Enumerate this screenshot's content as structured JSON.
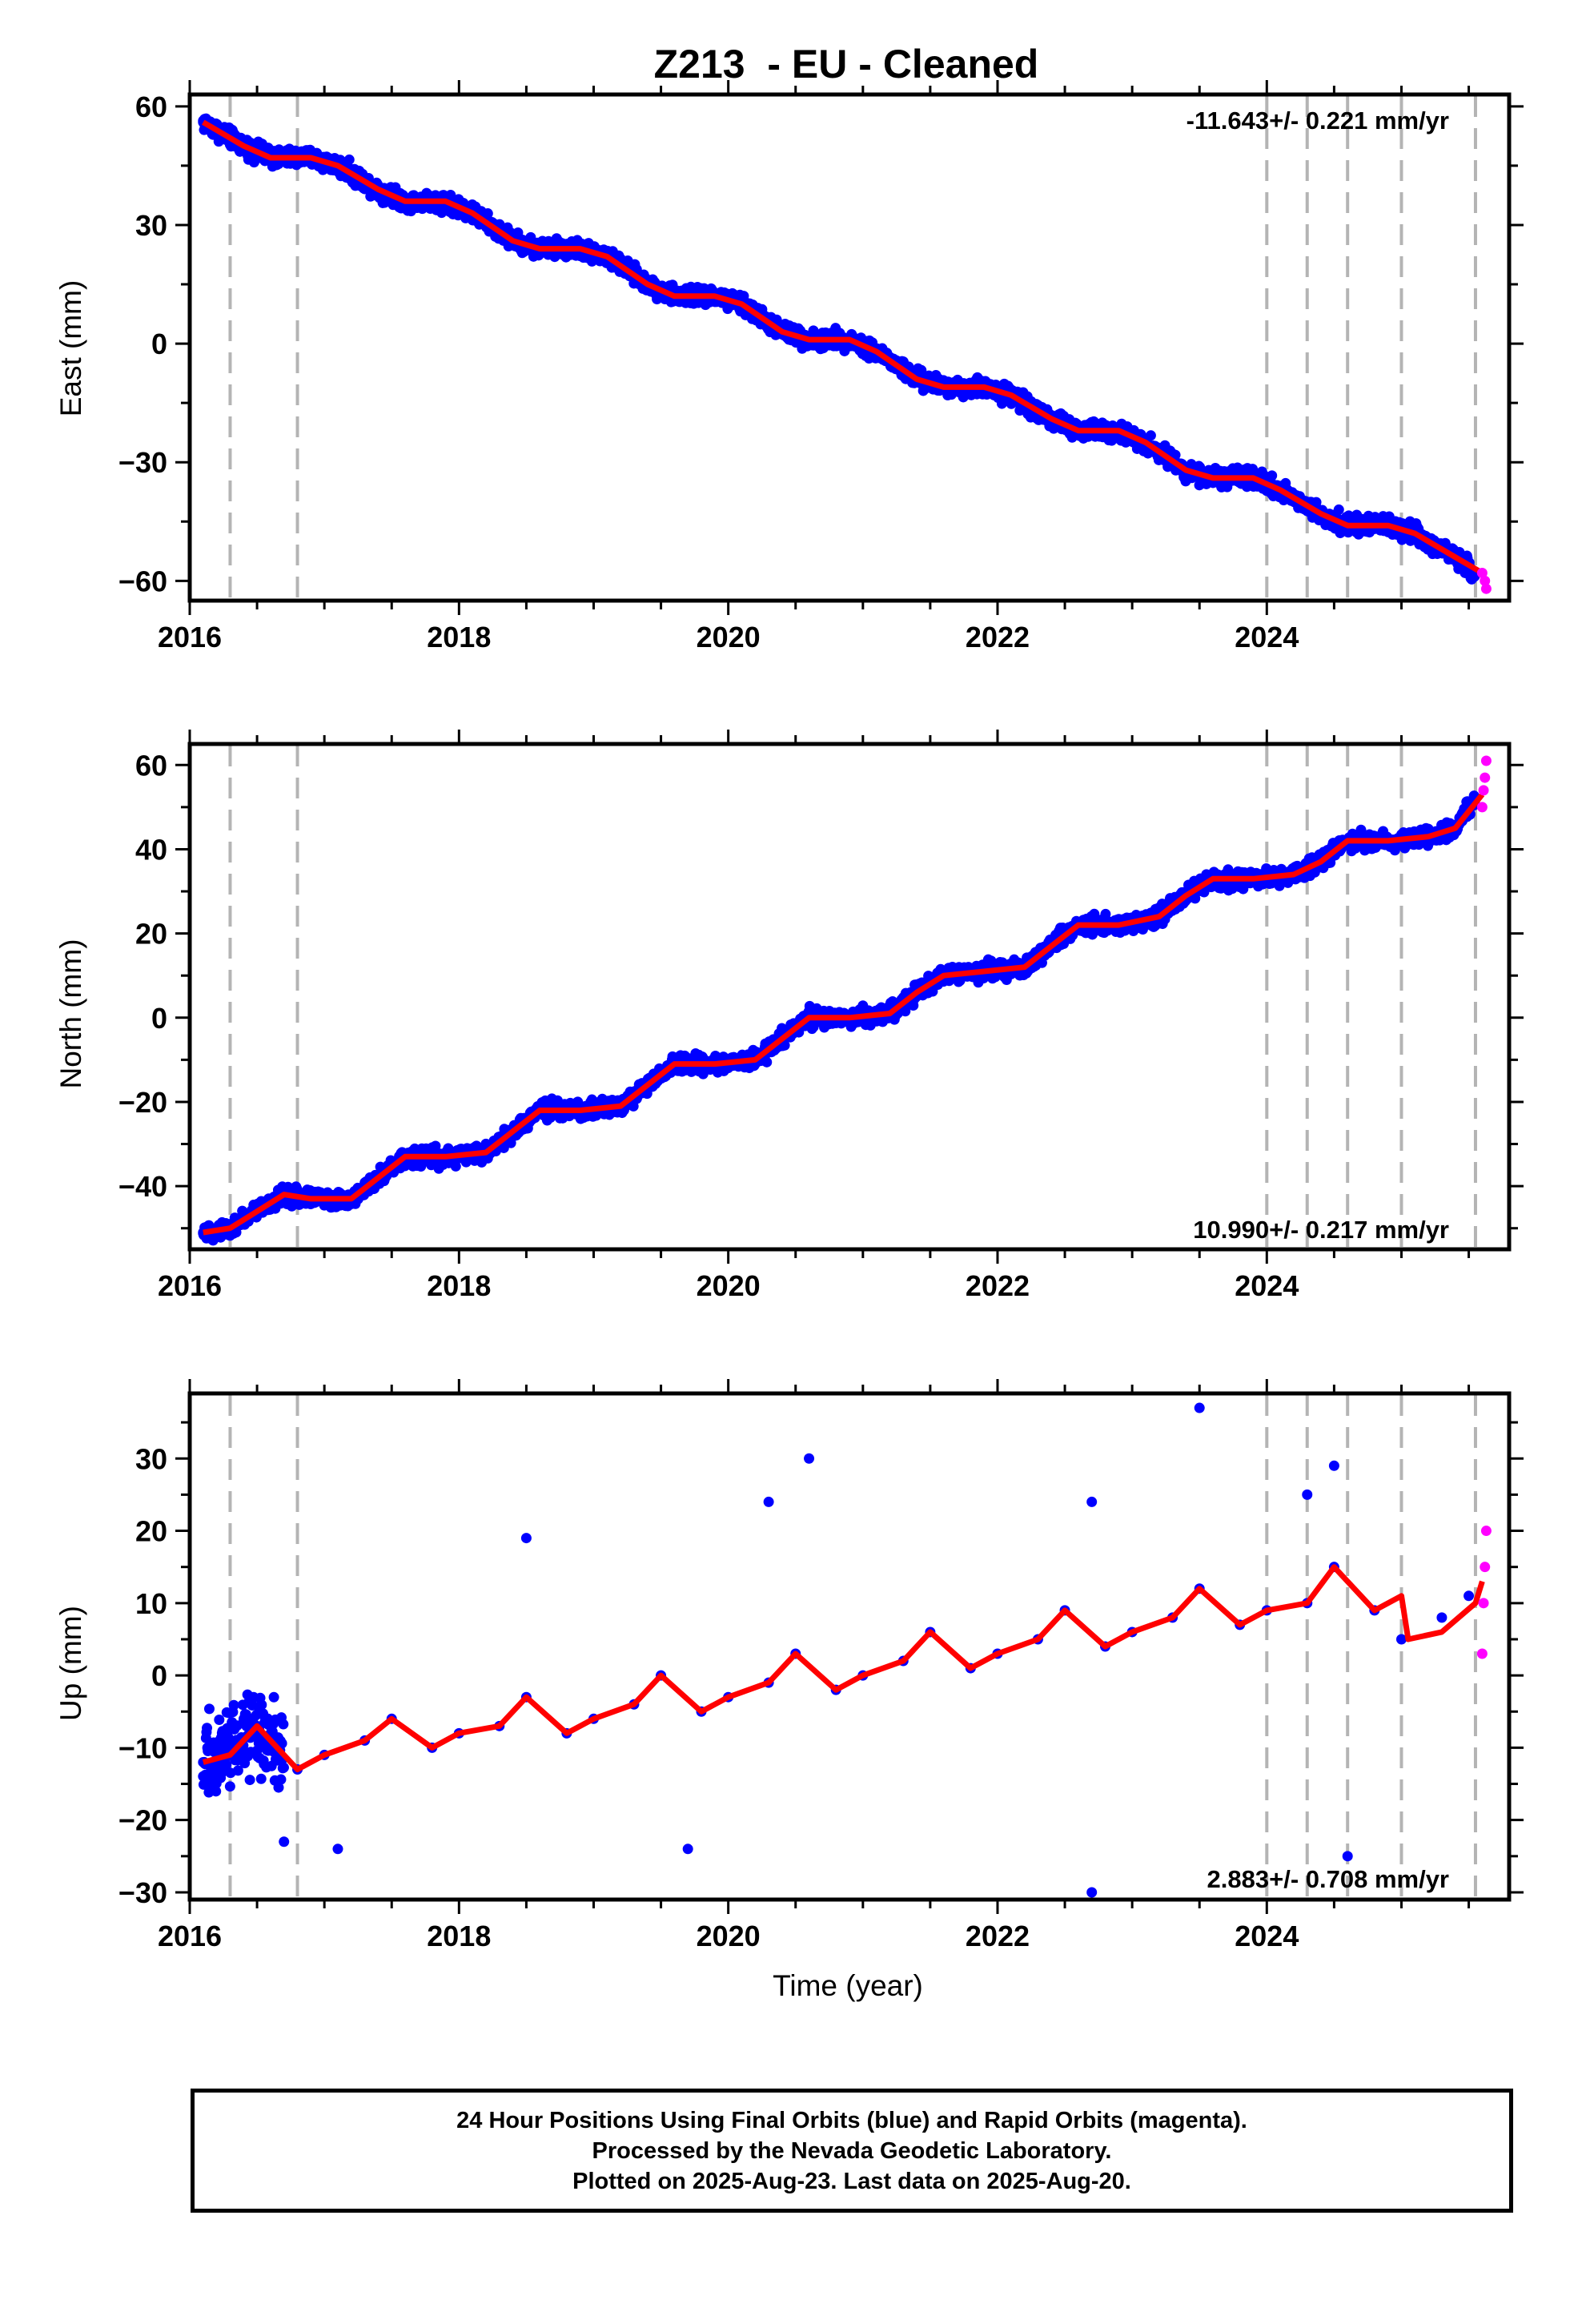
{
  "title": "Z213  - EU - Cleaned",
  "footer": {
    "line1": "24 Hour Positions Using Final Orbits (blue) and Rapid Orbits (magenta).",
    "line2": "Processed by the Nevada Geodetic Laboratory.",
    "line3": "Plotted on 2025-Aug-23. Last data on 2025-Aug-20."
  },
  "colors": {
    "final_orbits": "#0000ff",
    "rapid_orbits": "#ff00ff",
    "model": "#ff0000",
    "event_lines": "#b4b4b4"
  },
  "chart_data": [
    {
      "type": "scatter",
      "ylabel": "East (mm)",
      "xlabel": "",
      "rate": "-11.643+/- 0.221 mm/yr",
      "xlim": [
        2016.0,
        2025.8
      ],
      "ylim": [
        -65,
        63
      ],
      "xticks": [
        2016,
        2018,
        2020,
        2022,
        2024
      ],
      "yticks": [
        -60,
        -30,
        0,
        30,
        60
      ],
      "event_lines": [
        2016.3,
        2016.8,
        2024.0,
        2024.3,
        2024.6,
        2025.0,
        2025.55
      ],
      "series": [
        {
          "name": "Final Orbits",
          "color": "#0000ff",
          "x": [
            2016.1,
            2016.4,
            2016.6,
            2016.9,
            2017.1,
            2017.4,
            2017.6,
            2017.9,
            2018.1,
            2018.4,
            2018.6,
            2018.9,
            2019.1,
            2019.4,
            2019.6,
            2019.9,
            2020.1,
            2020.4,
            2020.6,
            2020.9,
            2021.1,
            2021.4,
            2021.6,
            2021.9,
            2022.1,
            2022.4,
            2022.6,
            2022.9,
            2023.1,
            2023.4,
            2023.6,
            2023.9,
            2024.1,
            2024.4,
            2024.6,
            2024.9,
            2025.1,
            2025.4,
            2025.55
          ],
          "y": [
            56,
            50,
            47,
            47,
            45,
            39,
            36,
            36,
            33,
            26,
            24,
            24,
            22,
            15,
            12,
            12,
            10,
            3,
            1,
            1,
            -2,
            -9,
            -11,
            -11,
            -13,
            -19,
            -22,
            -22,
            -25,
            -32,
            -34,
            -34,
            -37,
            -43,
            -46,
            -46,
            -48,
            -54,
            -58
          ]
        },
        {
          "name": "Rapid Orbits",
          "color": "#ff00ff",
          "x": [
            2025.6,
            2025.62,
            2025.63
          ],
          "y": [
            -58,
            -60,
            -62
          ]
        },
        {
          "name": "Model",
          "color": "#ff0000",
          "x": [
            2016.1,
            2016.4,
            2016.6,
            2016.9,
            2017.1,
            2017.4,
            2017.6,
            2017.9,
            2018.1,
            2018.4,
            2018.6,
            2018.9,
            2019.1,
            2019.4,
            2019.6,
            2019.9,
            2020.1,
            2020.4,
            2020.6,
            2020.9,
            2021.1,
            2021.4,
            2021.6,
            2021.9,
            2022.1,
            2022.4,
            2022.6,
            2022.9,
            2023.1,
            2023.4,
            2023.6,
            2023.9,
            2024.1,
            2024.4,
            2024.6,
            2024.9,
            2025.1,
            2025.4,
            2025.6
          ],
          "y": [
            56,
            50,
            47,
            47,
            45,
            39,
            36,
            36,
            33,
            26,
            24,
            24,
            22,
            15,
            12,
            12,
            10,
            3,
            1,
            1,
            -2,
            -9,
            -11,
            -11,
            -13,
            -19,
            -22,
            -22,
            -25,
            -32,
            -34,
            -34,
            -37,
            -43,
            -46,
            -46,
            -48,
            -54,
            -58
          ]
        }
      ]
    },
    {
      "type": "scatter",
      "ylabel": "North (mm)",
      "xlabel": "",
      "rate": "10.990+/- 0.217 mm/yr",
      "xlim": [
        2016.0,
        2025.8
      ],
      "ylim": [
        -55,
        65
      ],
      "xticks": [
        2016,
        2018,
        2020,
        2022,
        2024
      ],
      "yticks": [
        -40,
        -20,
        0,
        20,
        40,
        60
      ],
      "event_lines": [
        2016.3,
        2016.8,
        2024.0,
        2024.3,
        2024.6,
        2025.0,
        2025.55
      ],
      "series": [
        {
          "name": "Final Orbits",
          "color": "#0000ff",
          "x": [
            2016.1,
            2016.3,
            2016.5,
            2016.7,
            2016.9,
            2017.2,
            2017.4,
            2017.6,
            2017.9,
            2018.2,
            2018.4,
            2018.6,
            2018.9,
            2019.2,
            2019.4,
            2019.6,
            2019.9,
            2020.2,
            2020.4,
            2020.6,
            2020.9,
            2021.2,
            2021.4,
            2021.6,
            2021.9,
            2022.2,
            2022.4,
            2022.6,
            2022.9,
            2023.2,
            2023.4,
            2023.6,
            2023.9,
            2024.2,
            2024.4,
            2024.6,
            2024.9,
            2025.2,
            2025.4,
            2025.55
          ],
          "y": [
            -51,
            -50,
            -46,
            -42,
            -43,
            -43,
            -38,
            -33,
            -33,
            -32,
            -27,
            -22,
            -22,
            -21,
            -16,
            -11,
            -11,
            -10,
            -5,
            0,
            0,
            1,
            6,
            10,
            11,
            12,
            17,
            22,
            22,
            24,
            29,
            33,
            33,
            34,
            37,
            42,
            42,
            43,
            45,
            52
          ]
        },
        {
          "name": "Rapid Orbits",
          "color": "#ff00ff",
          "x": [
            2025.6,
            2025.61,
            2025.62,
            2025.63
          ],
          "y": [
            50,
            54,
            57,
            61
          ]
        },
        {
          "name": "Model",
          "color": "#ff0000",
          "x": [
            2016.1,
            2016.3,
            2016.5,
            2016.7,
            2016.9,
            2017.2,
            2017.4,
            2017.6,
            2017.9,
            2018.2,
            2018.4,
            2018.6,
            2018.9,
            2019.2,
            2019.4,
            2019.6,
            2019.9,
            2020.2,
            2020.4,
            2020.6,
            2020.9,
            2021.2,
            2021.4,
            2021.6,
            2021.9,
            2022.2,
            2022.4,
            2022.6,
            2022.9,
            2023.2,
            2023.4,
            2023.6,
            2023.9,
            2024.2,
            2024.4,
            2024.6,
            2024.9,
            2025.2,
            2025.4,
            2025.6
          ],
          "y": [
            -51,
            -50,
            -46,
            -42,
            -43,
            -43,
            -38,
            -33,
            -33,
            -32,
            -27,
            -22,
            -22,
            -21,
            -16,
            -11,
            -11,
            -10,
            -5,
            0,
            0,
            1,
            6,
            10,
            11,
            12,
            17,
            22,
            22,
            24,
            29,
            33,
            33,
            34,
            37,
            42,
            42,
            43,
            45,
            53
          ]
        }
      ]
    },
    {
      "type": "scatter",
      "ylabel": "Up (mm)",
      "xlabel": "Time (year)",
      "rate": "2.883+/- 0.708 mm/yr",
      "xlim": [
        2016.0,
        2025.8
      ],
      "ylim": [
        -31,
        39
      ],
      "xticks": [
        2016,
        2018,
        2020,
        2022,
        2024
      ],
      "yticks": [
        -30,
        -20,
        -10,
        0,
        10,
        20,
        30
      ],
      "event_lines": [
        2016.3,
        2016.8,
        2024.0,
        2024.3,
        2024.6,
        2025.0,
        2025.55
      ],
      "series": [
        {
          "name": "Final Orbits",
          "color": "#0000ff",
          "x": [
            2016.1,
            2016.3,
            2016.5,
            2016.8,
            2017.0,
            2017.3,
            2017.5,
            2017.8,
            2018.0,
            2018.3,
            2018.5,
            2018.8,
            2019.0,
            2019.3,
            2019.5,
            2019.8,
            2020.0,
            2020.3,
            2020.5,
            2020.8,
            2021.0,
            2021.3,
            2021.5,
            2021.8,
            2022.0,
            2022.3,
            2022.5,
            2022.8,
            2023.0,
            2023.3,
            2023.5,
            2023.8,
            2024.0,
            2024.3,
            2024.5,
            2024.8,
            2025.0,
            2025.3,
            2025.5,
            2018.5,
            2020.3,
            2020.6,
            2022.7,
            2023.5,
            2024.3,
            2024.5,
            2019.7,
            2024.6,
            2022.7,
            2017.1,
            2016.7
          ],
          "y": [
            -12,
            -10,
            -7,
            -13,
            -11,
            -9,
            -6,
            -10,
            -8,
            -7,
            -3,
            -8,
            -6,
            -4,
            0,
            -5,
            -3,
            -1,
            3,
            -2,
            0,
            2,
            6,
            1,
            3,
            5,
            9,
            4,
            6,
            8,
            12,
            7,
            9,
            10,
            15,
            9,
            5,
            8,
            11,
            19,
            24,
            30,
            24,
            37,
            25,
            29,
            -24,
            -25,
            -30,
            -24,
            -23
          ]
        },
        {
          "name": "Rapid Orbits",
          "color": "#ff00ff",
          "x": [
            2025.6,
            2025.61,
            2025.62,
            2025.63
          ],
          "y": [
            3,
            10,
            15,
            20
          ]
        },
        {
          "name": "Model",
          "color": "#ff0000",
          "x": [
            2016.1,
            2016.3,
            2016.5,
            2016.8,
            2017.0,
            2017.3,
            2017.5,
            2017.8,
            2018.0,
            2018.3,
            2018.5,
            2018.8,
            2019.0,
            2019.3,
            2019.5,
            2019.8,
            2020.0,
            2020.3,
            2020.5,
            2020.8,
            2021.0,
            2021.3,
            2021.5,
            2021.8,
            2022.0,
            2022.3,
            2022.5,
            2022.8,
            2023.0,
            2023.3,
            2023.5,
            2023.8,
            2024.0,
            2024.3,
            2024.5,
            2024.8,
            2025.0,
            2025.05,
            2025.3,
            2025.55,
            2025.6
          ],
          "y": [
            -12,
            -11,
            -7,
            -13,
            -11,
            -9,
            -6,
            -10,
            -8,
            -7,
            -3,
            -8,
            -6,
            -4,
            0,
            -5,
            -3,
            -1,
            3,
            -2,
            0,
            2,
            6,
            1,
            3,
            5,
            9,
            4,
            6,
            8,
            12,
            7,
            9,
            10,
            15,
            9,
            11,
            5,
            6,
            10,
            13
          ]
        }
      ]
    }
  ]
}
